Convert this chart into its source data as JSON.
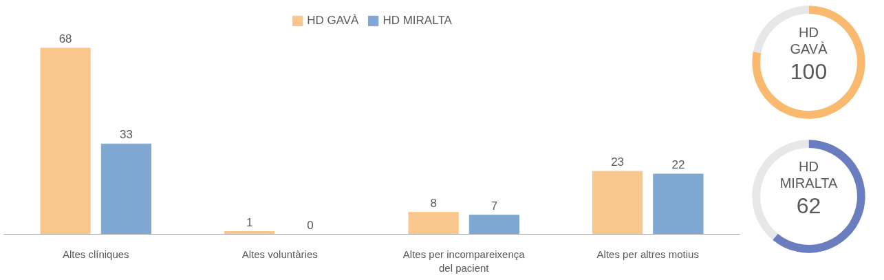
{
  "chart_data": [
    {
      "type": "bar",
      "categories": [
        "Altes clíniques",
        "Altes voluntàries",
        "Altes per incompareixença del pacient",
        "Altes per altres motius"
      ],
      "series": [
        {
          "name": "HD GAVÀ",
          "color": "#f9c68d",
          "values": [
            68,
            1,
            8,
            23
          ]
        },
        {
          "name": "HD MIRALTA",
          "color": "#7ea8d1",
          "values": [
            33,
            0,
            7,
            22
          ]
        }
      ],
      "data_labels": true,
      "legend": "top",
      "grid": false,
      "tick_labels": "x"
    },
    {
      "type": "donut",
      "title": "HD GAVÀ",
      "categories": [
        null,
        null
      ],
      "values": [
        78,
        22
      ],
      "colors": [
        "#f9b96f",
        "#e6e7e8"
      ],
      "annotations": [
        "100"
      ]
    },
    {
      "type": "donut",
      "title": "HD MIRALTA",
      "categories": [
        null,
        null
      ],
      "values": [
        61,
        39
      ],
      "colors": [
        "#6a7dbf",
        "#e6e7e8"
      ],
      "annotations": [
        "62"
      ]
    }
  ]
}
